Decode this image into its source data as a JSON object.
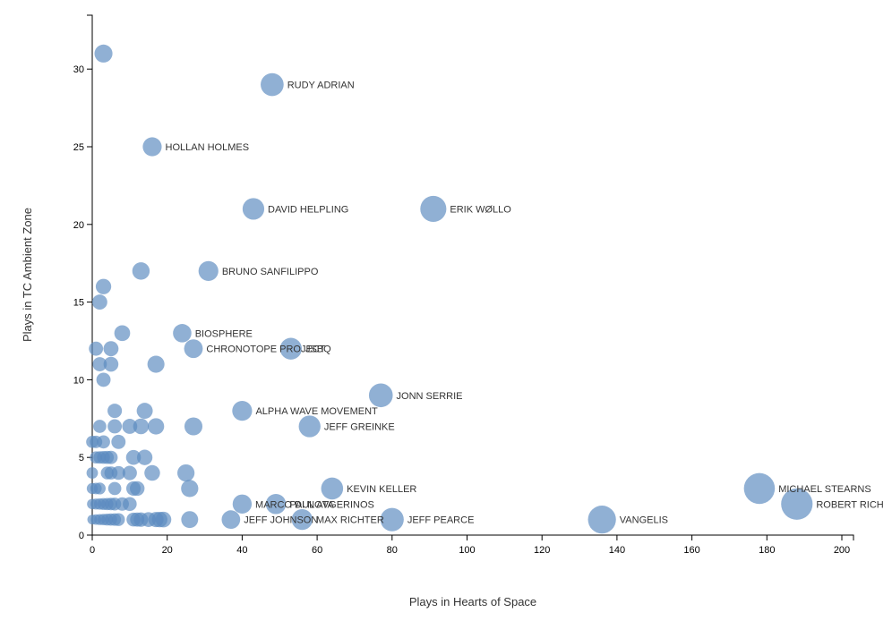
{
  "colors": {
    "point": "#5b8ac0",
    "axis": "#000000",
    "label": "#333333"
  },
  "chart_data": {
    "type": "scatter",
    "title": "",
    "xlabel": "Plays in Hearts of Space",
    "ylabel": "Plays in TC Ambient Zone",
    "xlim": [
      0,
      203
    ],
    "ylim": [
      0,
      33.5
    ],
    "xticks": [
      0,
      20,
      40,
      60,
      80,
      100,
      120,
      140,
      160,
      180,
      200
    ],
    "yticks": [
      0,
      5,
      10,
      15,
      20,
      25,
      30
    ],
    "grid": false,
    "legend": "none",
    "points": [
      {
        "x": 3,
        "y": 31
      },
      {
        "x": 48,
        "y": 29,
        "label": "RUDY ADRIAN"
      },
      {
        "x": 16,
        "y": 25,
        "label": "HOLLAN HOLMES"
      },
      {
        "x": 43,
        "y": 21,
        "label": "DAVID HELPLING"
      },
      {
        "x": 91,
        "y": 21,
        "label": "ERIK WØLLO"
      },
      {
        "x": 13,
        "y": 17
      },
      {
        "x": 31,
        "y": 17,
        "label": "BRUNO SANFILIPPO"
      },
      {
        "x": 3,
        "y": 16
      },
      {
        "x": 2,
        "y": 15
      },
      {
        "x": 8,
        "y": 13
      },
      {
        "x": 24,
        "y": 13,
        "label": "BIOSPHERE"
      },
      {
        "x": 1,
        "y": 12
      },
      {
        "x": 5,
        "y": 12
      },
      {
        "x": 27,
        "y": 12,
        "label": "CHRONOTOPE PROJECT"
      },
      {
        "x": 53,
        "y": 12,
        "label": "JSBQ"
      },
      {
        "x": 2,
        "y": 11
      },
      {
        "x": 5,
        "y": 11
      },
      {
        "x": 17,
        "y": 11
      },
      {
        "x": 3,
        "y": 10
      },
      {
        "x": 77,
        "y": 9,
        "label": "JONN SERRIE"
      },
      {
        "x": 6,
        "y": 8
      },
      {
        "x": 14,
        "y": 8
      },
      {
        "x": 40,
        "y": 8,
        "label": "ALPHA WAVE MOVEMENT"
      },
      {
        "x": 2,
        "y": 7
      },
      {
        "x": 6,
        "y": 7
      },
      {
        "x": 10,
        "y": 7
      },
      {
        "x": 13,
        "y": 7
      },
      {
        "x": 17,
        "y": 7
      },
      {
        "x": 27,
        "y": 7
      },
      {
        "x": 58,
        "y": 7,
        "label": "JEFF GREINKE"
      },
      {
        "x": 0,
        "y": 6
      },
      {
        "x": 1,
        "y": 6
      },
      {
        "x": 3,
        "y": 6
      },
      {
        "x": 7,
        "y": 6
      },
      {
        "x": 1,
        "y": 5
      },
      {
        "x": 2,
        "y": 5
      },
      {
        "x": 3,
        "y": 5
      },
      {
        "x": 4,
        "y": 5
      },
      {
        "x": 5,
        "y": 5
      },
      {
        "x": 11,
        "y": 5
      },
      {
        "x": 14,
        "y": 5
      },
      {
        "x": 0,
        "y": 4
      },
      {
        "x": 4,
        "y": 4
      },
      {
        "x": 5,
        "y": 4
      },
      {
        "x": 7,
        "y": 4
      },
      {
        "x": 10,
        "y": 4
      },
      {
        "x": 16,
        "y": 4
      },
      {
        "x": 25,
        "y": 4
      },
      {
        "x": 0,
        "y": 3
      },
      {
        "x": 1,
        "y": 3
      },
      {
        "x": 2,
        "y": 3
      },
      {
        "x": 6,
        "y": 3
      },
      {
        "x": 11,
        "y": 3
      },
      {
        "x": 12,
        "y": 3
      },
      {
        "x": 26,
        "y": 3
      },
      {
        "x": 64,
        "y": 3,
        "label": "KEVIN KELLER"
      },
      {
        "x": 178,
        "y": 3,
        "label": "MICHAEL STEARNS"
      },
      {
        "x": 0,
        "y": 2
      },
      {
        "x": 1,
        "y": 2
      },
      {
        "x": 2,
        "y": 2
      },
      {
        "x": 3,
        "y": 2
      },
      {
        "x": 4,
        "y": 2
      },
      {
        "x": 5,
        "y": 2
      },
      {
        "x": 6,
        "y": 2
      },
      {
        "x": 8,
        "y": 2
      },
      {
        "x": 10,
        "y": 2
      },
      {
        "x": 40,
        "y": 2,
        "label": "MARCO DI NOTA"
      },
      {
        "x": 49,
        "y": 2,
        "label": "PAUL AVGERINOS"
      },
      {
        "x": 188,
        "y": 2,
        "label": "ROBERT RICH"
      },
      {
        "x": 0,
        "y": 1
      },
      {
        "x": 1,
        "y": 1
      },
      {
        "x": 2,
        "y": 1
      },
      {
        "x": 3,
        "y": 1
      },
      {
        "x": 4,
        "y": 1
      },
      {
        "x": 5,
        "y": 1
      },
      {
        "x": 6,
        "y": 1
      },
      {
        "x": 7,
        "y": 1
      },
      {
        "x": 11,
        "y": 1
      },
      {
        "x": 12,
        "y": 1
      },
      {
        "x": 13,
        "y": 1
      },
      {
        "x": 15,
        "y": 1
      },
      {
        "x": 17,
        "y": 1
      },
      {
        "x": 18,
        "y": 1
      },
      {
        "x": 19,
        "y": 1
      },
      {
        "x": 26,
        "y": 1
      },
      {
        "x": 37,
        "y": 1,
        "label": "JEFF JOHNSON"
      },
      {
        "x": 56,
        "y": 1,
        "label": "MAX RICHTER"
      },
      {
        "x": 80,
        "y": 1,
        "label": "JEFF PEARCE"
      },
      {
        "x": 136,
        "y": 1,
        "label": "VANGELIS"
      }
    ]
  }
}
